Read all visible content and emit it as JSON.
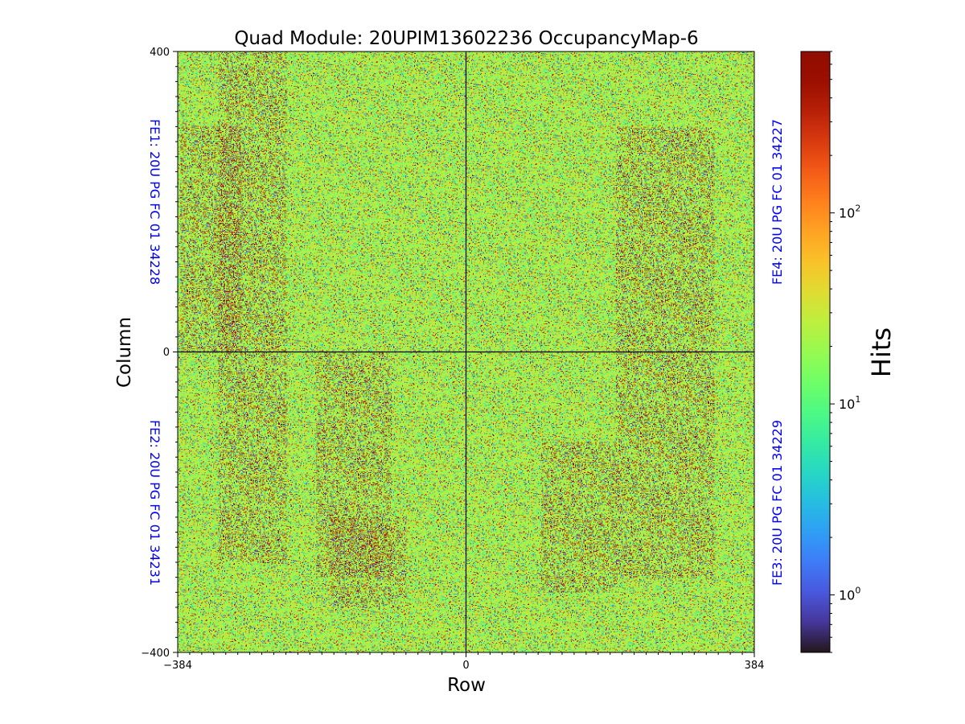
{
  "chart_data": {
    "type": "heatmap",
    "title": "Quad Module: 20UPIM13602236 OccupancyMap-6",
    "xlabel": "Row",
    "ylabel": "Column",
    "xlim": [
      -384,
      384
    ],
    "ylim": [
      -400,
      400
    ],
    "x_ticks": [
      {
        "value": -384,
        "label": "−384"
      },
      {
        "value": 0,
        "label": "0"
      },
      {
        "value": 384,
        "label": "384"
      }
    ],
    "y_ticks": [
      {
        "value": 400,
        "label": "400"
      },
      {
        "value": 0,
        "label": "0"
      },
      {
        "value": -400,
        "label": "−400"
      }
    ],
    "divider_lines": {
      "x": 0,
      "y": 0
    },
    "chip_labels": [
      {
        "text": "FE1: 20U PG FC 01 34228",
        "quadrant": "top-left"
      },
      {
        "text": "FE2: 20U PG FC 01 34231",
        "quadrant": "bottom-left"
      },
      {
        "text": "FE4: 20U PG FC 01 34227",
        "quadrant": "top-right"
      },
      {
        "text": "FE3: 20U PG FC 01 34229",
        "quadrant": "bottom-right"
      }
    ],
    "chip_label_color": "#0000ff",
    "colorbar": {
      "label": "Hits",
      "scale": "log",
      "vmin": 0.5,
      "vmax": 700,
      "colormap": "turbo",
      "ticks": [
        {
          "value": 1,
          "base": "10",
          "exp": "0"
        },
        {
          "value": 10,
          "base": "10",
          "exp": "1"
        },
        {
          "value": 100,
          "base": "10",
          "exp": "2"
        }
      ]
    },
    "dominant_hits": 20,
    "denser_regions": [
      {
        "x": [
          -330,
          -240
        ],
        "y": [
          -280,
          400
        ],
        "note": "darker vertical band"
      },
      {
        "x": [
          -200,
          -100
        ],
        "y": [
          -300,
          0
        ]
      },
      {
        "x": [
          -180,
          -80
        ],
        "y": [
          -340,
          -220
        ]
      },
      {
        "x": [
          100,
          200
        ],
        "y": [
          -320,
          -120
        ]
      },
      {
        "x": [
          200,
          330
        ],
        "y": [
          -300,
          300
        ]
      },
      {
        "x": [
          -380,
          -300
        ],
        "y": [
          0,
          300
        ]
      }
    ]
  }
}
